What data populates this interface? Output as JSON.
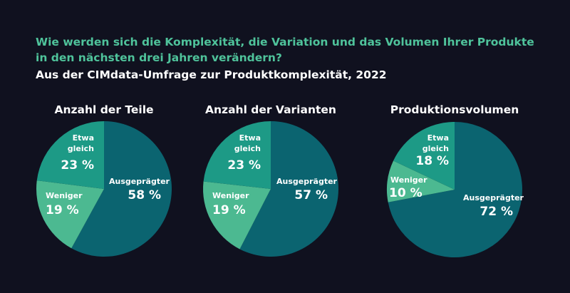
{
  "chart_data": [
    {
      "type": "pie",
      "title": "Anzahl der Teile",
      "slices": [
        {
          "label": "Ausgeprägter",
          "value": 58,
          "display": "58 %",
          "color": "#0b6470"
        },
        {
          "label": "Weniger",
          "value": 19,
          "display": "19 %",
          "color": "#4cb991"
        },
        {
          "label": "Etwa gleich",
          "value": 23,
          "display": "23 %",
          "color": "#1d9a86"
        }
      ]
    },
    {
      "type": "pie",
      "title": "Anzahl der Varianten",
      "slices": [
        {
          "label": "Ausgeprägter",
          "value": 57,
          "display": "57 %",
          "color": "#0b6470"
        },
        {
          "label": "Weniger",
          "value": 19,
          "display": "19 %",
          "color": "#4cb991"
        },
        {
          "label": "Etwa gleich",
          "value": 23,
          "display": "23 %",
          "color": "#1d9a86"
        }
      ]
    },
    {
      "type": "pie",
      "title": "Produktionsvolumen",
      "slices": [
        {
          "label": "Ausgeprägter",
          "value": 72,
          "display": "72 %",
          "color": "#0b6470"
        },
        {
          "label": "Weniger",
          "value": 10,
          "display": "10 %",
          "color": "#4cb991"
        },
        {
          "label": "Etwa gleich",
          "value": 18,
          "display": "18 %",
          "color": "#1d9a86"
        }
      ]
    }
  ],
  "header": {
    "question": "Wie werden sich die Komplexität, die Variation und das Volumen Ihrer Produkte in den nächsten drei Jahren verändern?",
    "subtitle": "Aus der CIMdata-Umfrage zur Produktkomplexität, 2022"
  },
  "labels": {
    "etwa": "Etwa",
    "gleich": "gleich"
  },
  "colors": {
    "background": "#10111f",
    "question": "#4fc39b"
  }
}
